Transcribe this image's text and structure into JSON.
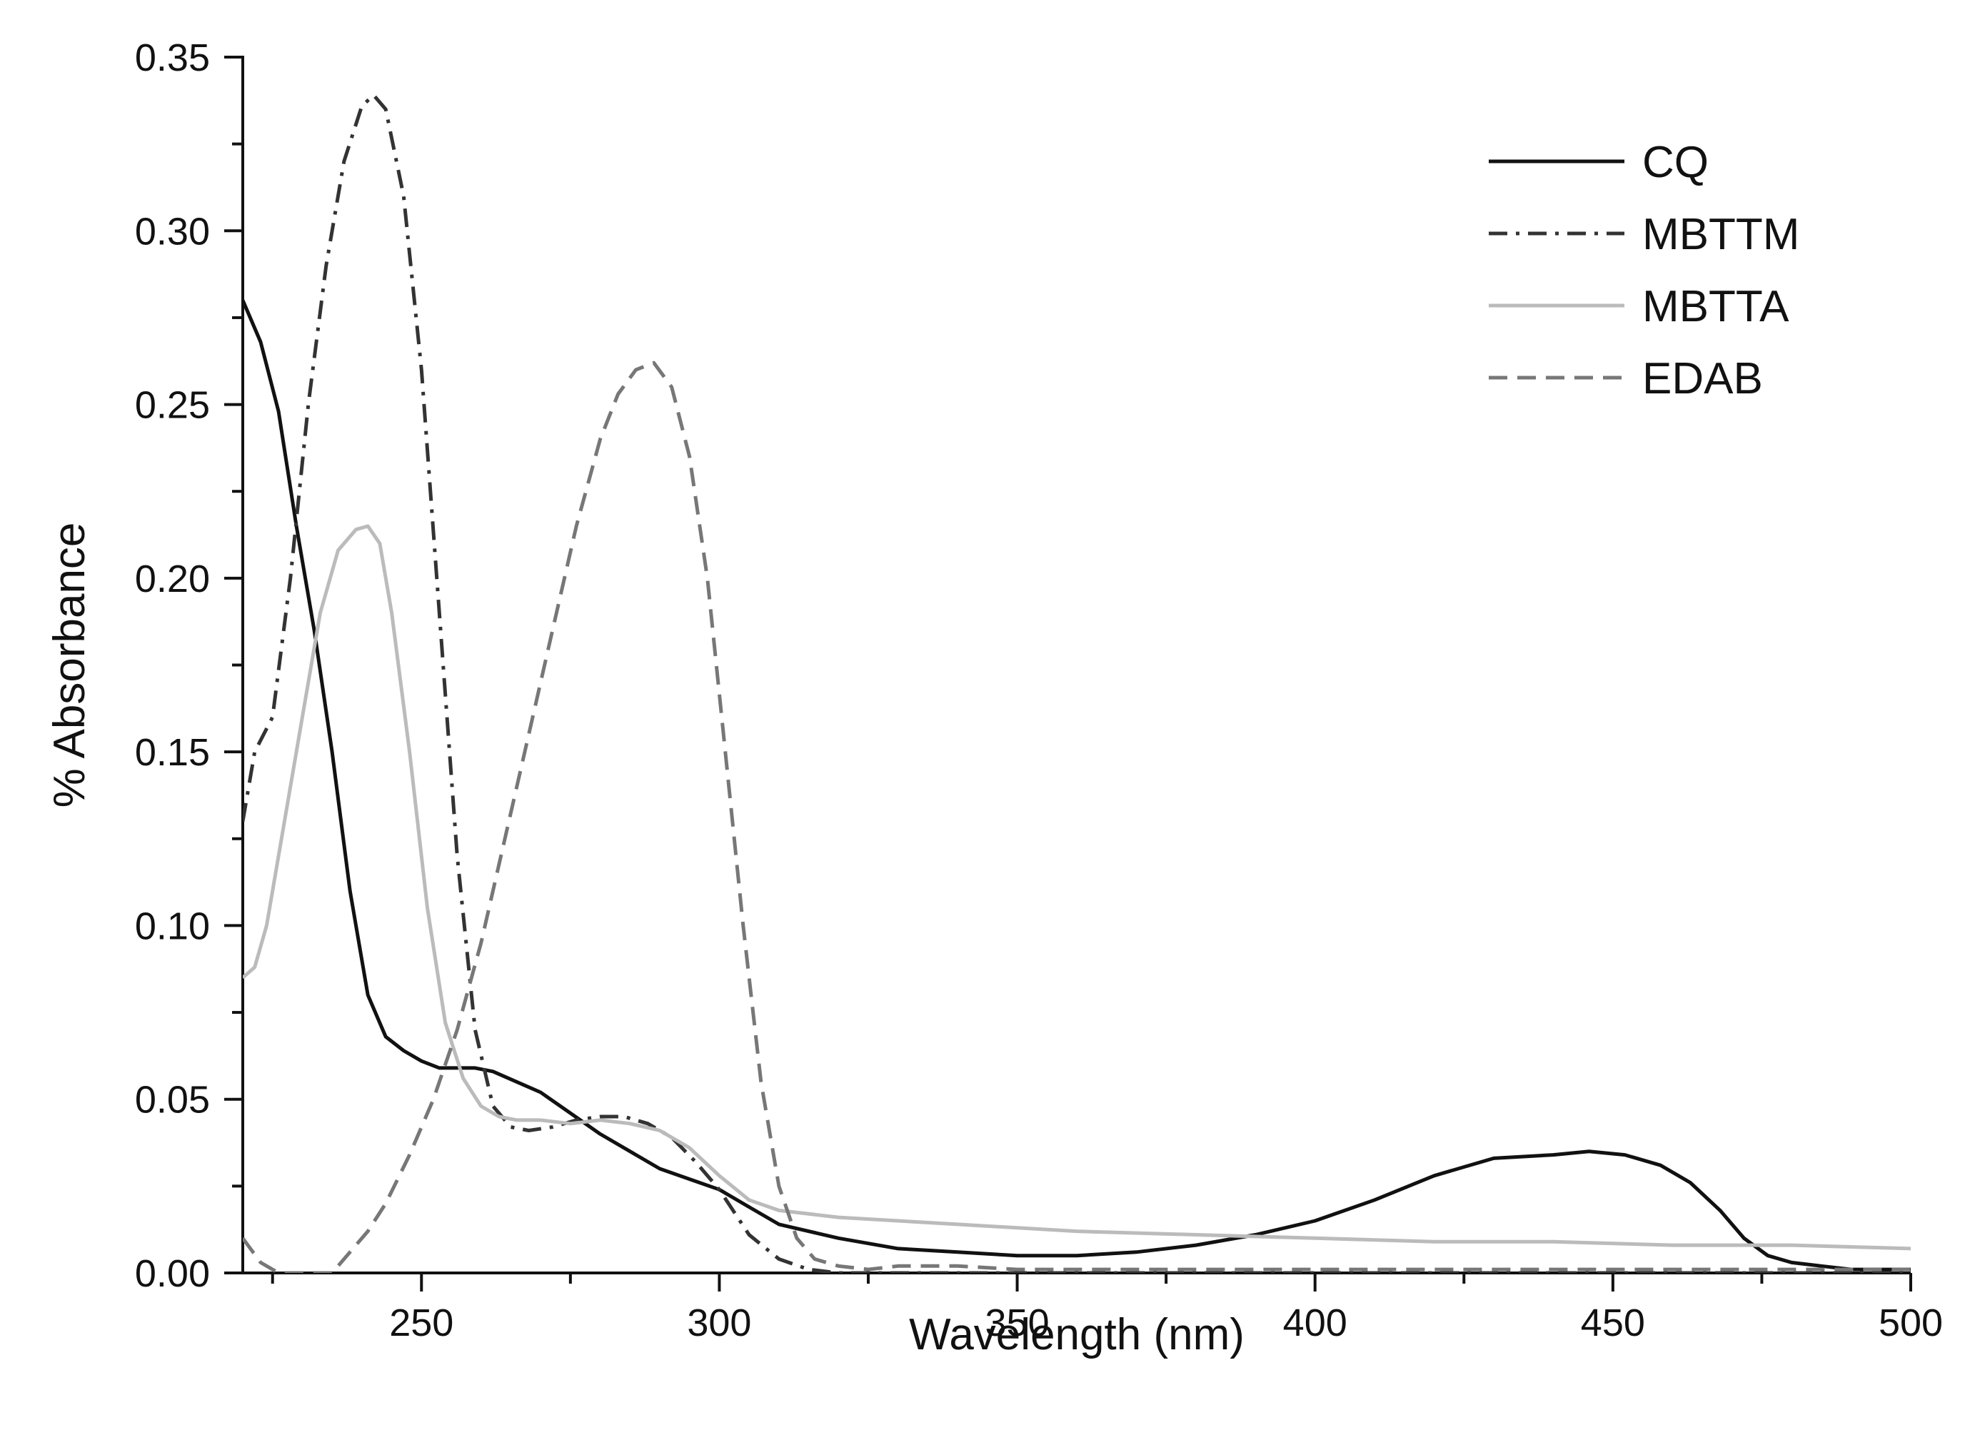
{
  "chart_data": {
    "type": "line",
    "title": "",
    "xlabel": "Wavelength (nm)",
    "ylabel": "% Absorbance",
    "xlim": [
      220,
      500
    ],
    "ylim": [
      0,
      0.35
    ],
    "x_ticks": [
      250,
      300,
      350,
      400,
      450,
      500
    ],
    "x_tick_labels": [
      "250",
      "300",
      "350",
      "400",
      "450",
      "500"
    ],
    "x_minor_ticks": [
      225,
      275,
      325,
      375,
      425,
      475
    ],
    "y_ticks": [
      0.0,
      0.05,
      0.1,
      0.15,
      0.2,
      0.25,
      0.3,
      0.35
    ],
    "y_tick_labels": [
      "0.00",
      "0.05",
      "0.10",
      "0.15",
      "0.20",
      "0.25",
      "0.30",
      "0.35"
    ],
    "y_minor_ticks": [
      0.025,
      0.075,
      0.125,
      0.175,
      0.225,
      0.275,
      0.325
    ],
    "grid": false,
    "legend_position": "top-right",
    "series": [
      {
        "name": "CQ",
        "style": "solid",
        "color": "#111111",
        "x": [
          220,
          223,
          226,
          229,
          232,
          235,
          238,
          241,
          244,
          247,
          250,
          253,
          256,
          259,
          262,
          266,
          270,
          275,
          280,
          285,
          290,
          295,
          300,
          305,
          310,
          320,
          330,
          340,
          350,
          360,
          370,
          380,
          390,
          400,
          410,
          420,
          430,
          440,
          446,
          452,
          458,
          463,
          468,
          472,
          476,
          480,
          485,
          490,
          500
        ],
        "y": [
          0.28,
          0.268,
          0.248,
          0.215,
          0.185,
          0.15,
          0.11,
          0.08,
          0.068,
          0.064,
          0.061,
          0.059,
          0.059,
          0.059,
          0.058,
          0.055,
          0.052,
          0.046,
          0.04,
          0.035,
          0.03,
          0.027,
          0.024,
          0.019,
          0.014,
          0.01,
          0.007,
          0.006,
          0.005,
          0.005,
          0.006,
          0.008,
          0.011,
          0.015,
          0.021,
          0.028,
          0.033,
          0.034,
          0.035,
          0.034,
          0.031,
          0.026,
          0.018,
          0.01,
          0.005,
          0.003,
          0.002,
          0.001,
          0.001
        ]
      },
      {
        "name": "MBTTM",
        "style": "dashdot",
        "color": "#333333",
        "x": [
          220,
          222,
          225,
          228,
          231,
          234,
          237,
          240,
          242,
          244,
          247,
          250,
          253,
          256,
          259,
          262,
          265,
          268,
          272,
          276,
          280,
          284,
          288,
          292,
          296,
          300,
          305,
          310,
          315,
          320,
          330,
          350,
          400,
          450,
          500
        ],
        "y": [
          0.13,
          0.15,
          0.16,
          0.2,
          0.25,
          0.29,
          0.32,
          0.336,
          0.339,
          0.335,
          0.31,
          0.26,
          0.19,
          0.12,
          0.07,
          0.048,
          0.042,
          0.041,
          0.042,
          0.044,
          0.045,
          0.045,
          0.043,
          0.039,
          0.032,
          0.024,
          0.011,
          0.004,
          0.001,
          0.0,
          0.0,
          0.0,
          0.0,
          0.0,
          0.0
        ]
      },
      {
        "name": "MBTTA",
        "style": "solid",
        "color": "#bbbbbb",
        "x": [
          220,
          222,
          224,
          227,
          230,
          233,
          236,
          239,
          241,
          243,
          245,
          248,
          251,
          254,
          257,
          260,
          263,
          266,
          270,
          275,
          280,
          285,
          290,
          295,
          300,
          305,
          310,
          320,
          340,
          360,
          380,
          400,
          420,
          440,
          460,
          480,
          500
        ],
        "y": [
          0.085,
          0.088,
          0.1,
          0.13,
          0.16,
          0.19,
          0.208,
          0.214,
          0.215,
          0.21,
          0.19,
          0.15,
          0.105,
          0.072,
          0.056,
          0.048,
          0.045,
          0.044,
          0.044,
          0.043,
          0.044,
          0.043,
          0.041,
          0.036,
          0.028,
          0.021,
          0.018,
          0.016,
          0.014,
          0.012,
          0.011,
          0.01,
          0.009,
          0.009,
          0.008,
          0.008,
          0.007
        ]
      },
      {
        "name": "EDAB",
        "style": "dashed",
        "color": "#777777",
        "x": [
          220,
          223,
          226,
          229,
          232,
          235,
          238,
          241,
          244,
          248,
          252,
          256,
          260,
          264,
          268,
          272,
          276,
          280,
          283,
          286,
          289,
          292,
          295,
          298,
          301,
          304,
          307,
          310,
          313,
          316,
          320,
          325,
          330,
          340,
          350,
          400,
          450,
          500
        ],
        "y": [
          0.01,
          0.003,
          0.0,
          0.0,
          0.0,
          0.0,
          0.006,
          0.012,
          0.02,
          0.034,
          0.05,
          0.07,
          0.095,
          0.125,
          0.155,
          0.185,
          0.215,
          0.24,
          0.253,
          0.26,
          0.262,
          0.255,
          0.235,
          0.2,
          0.15,
          0.1,
          0.055,
          0.025,
          0.01,
          0.004,
          0.002,
          0.001,
          0.002,
          0.002,
          0.001,
          0.001,
          0.001,
          0.001
        ]
      }
    ]
  }
}
